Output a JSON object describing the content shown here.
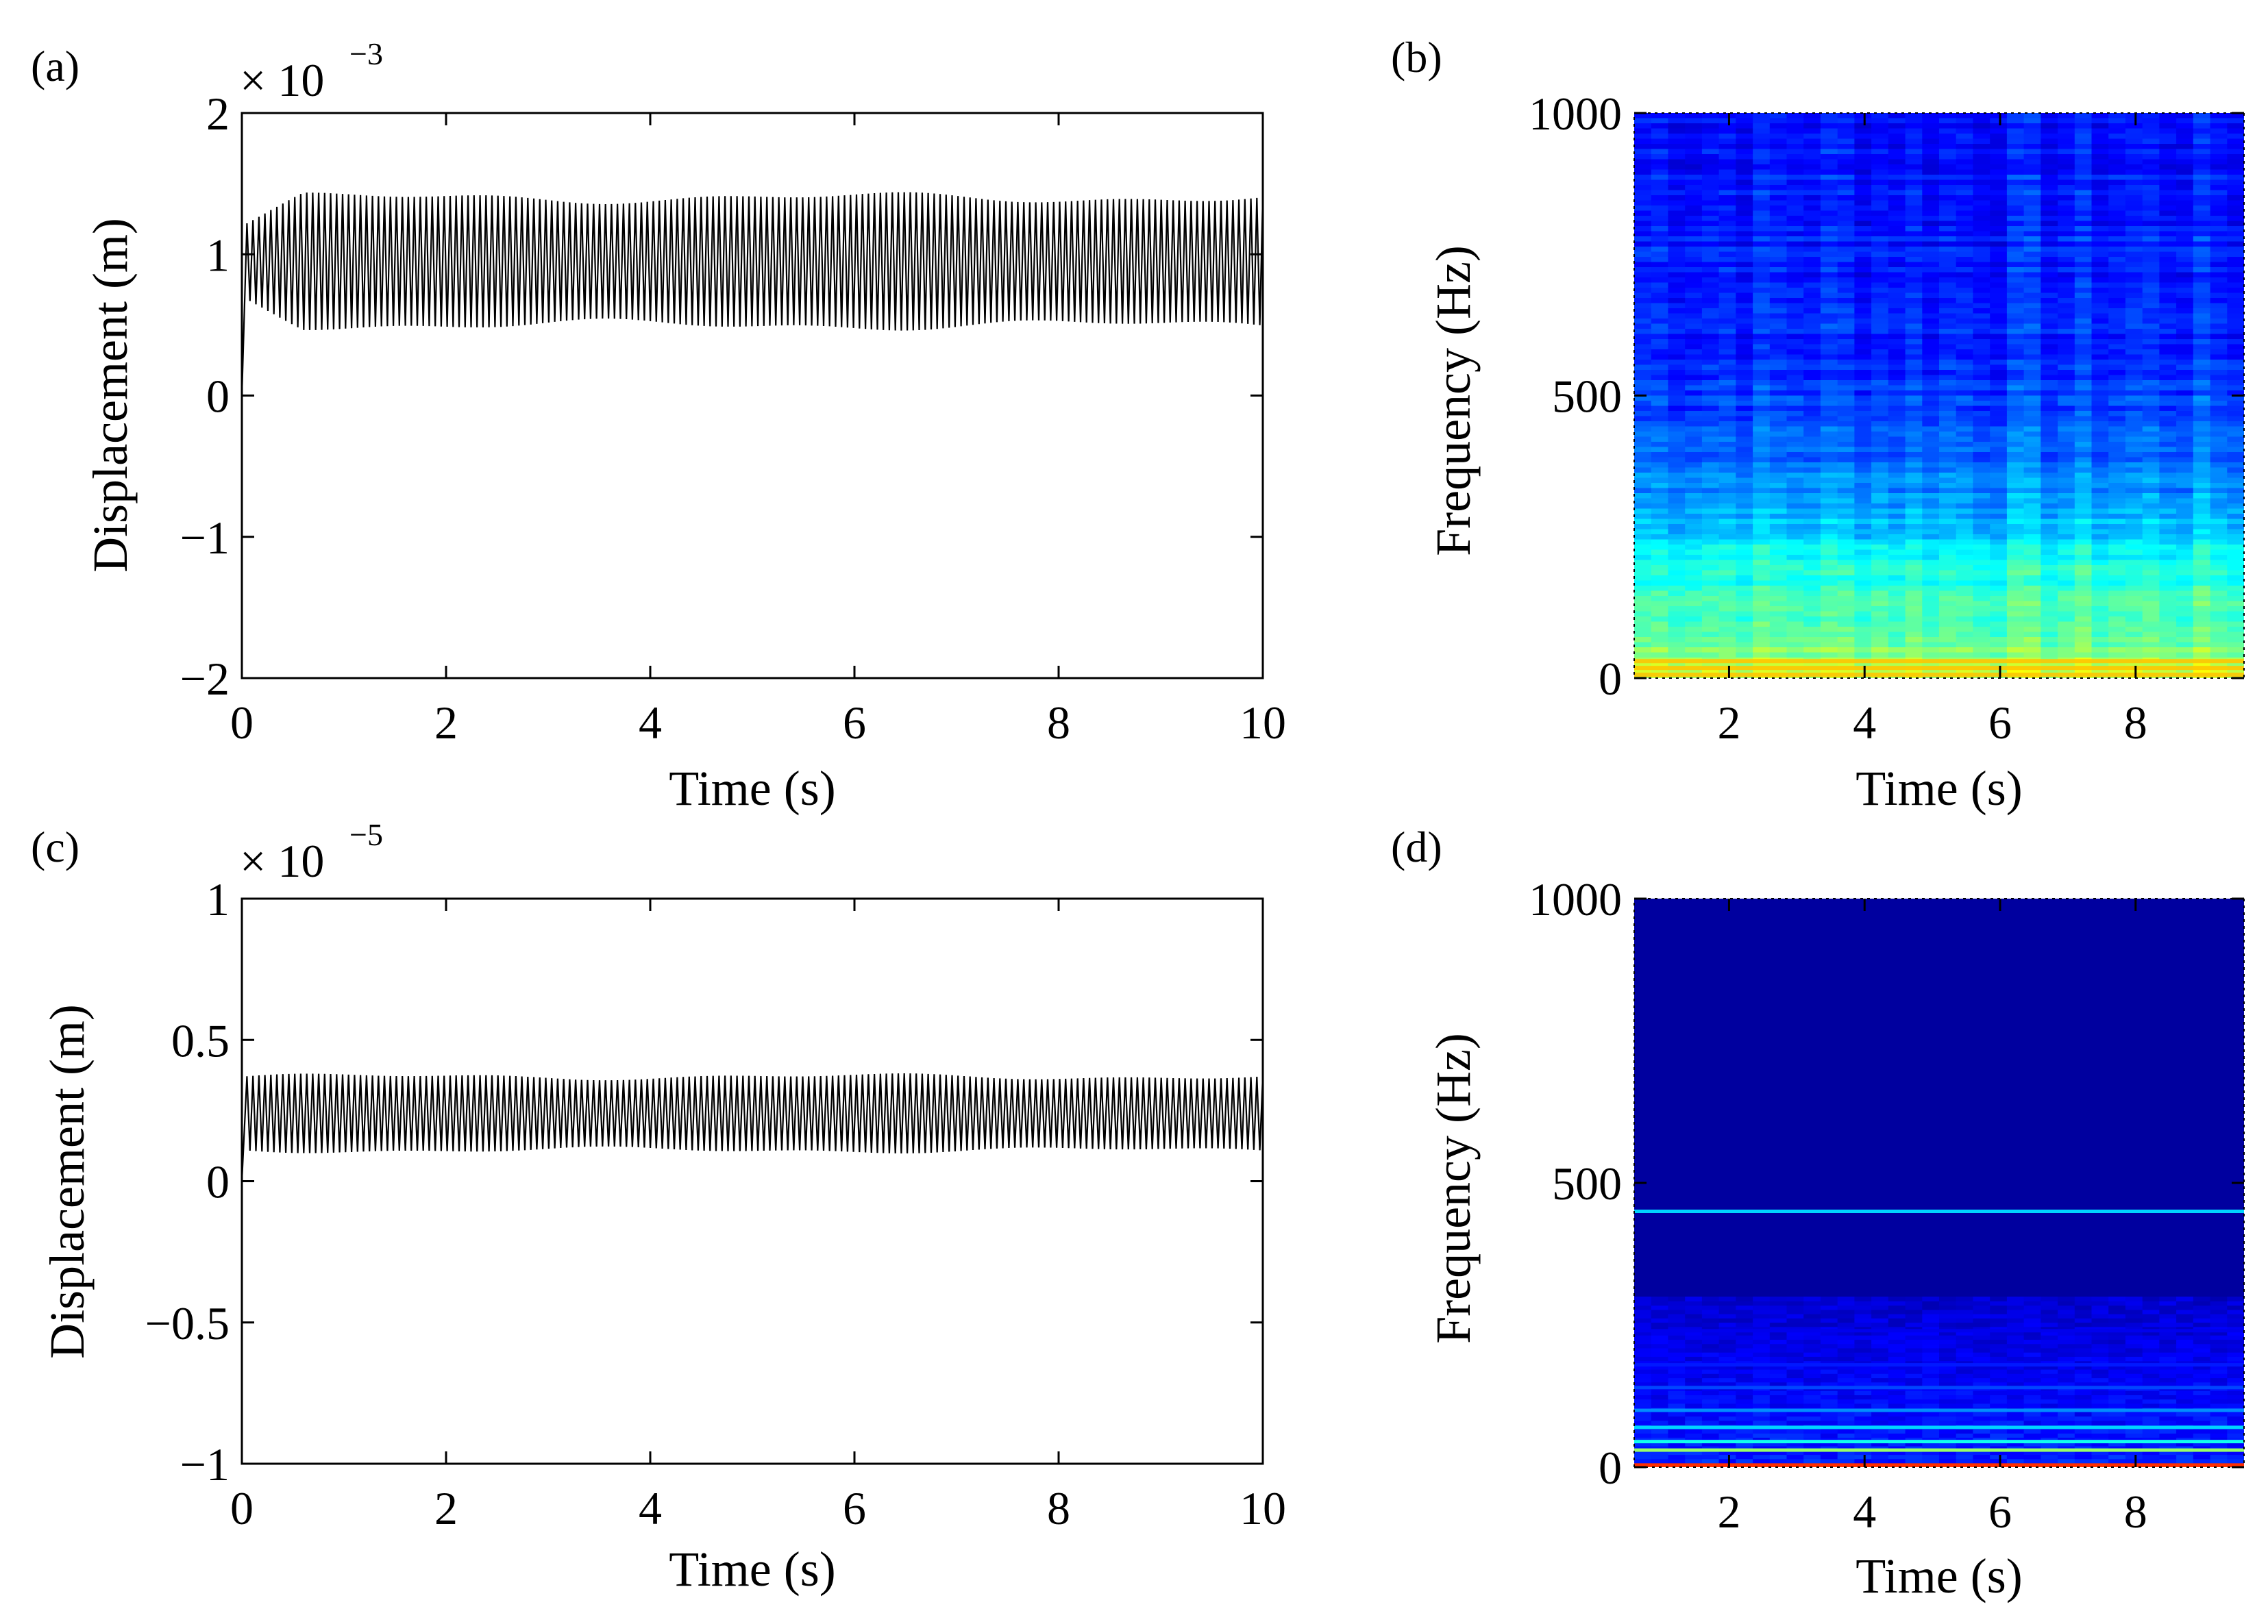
{
  "figure": {
    "background": "#ffffff",
    "axis_color": "#000000",
    "signal_color": "#000000"
  },
  "chart_data": [
    {
      "id": "a",
      "panel_label": "(a)",
      "type": "line",
      "title": "",
      "xlabel": "Time (s)",
      "ylabel": "Displacement (m)",
      "xlim": [
        0,
        10
      ],
      "ylim": [
        -2,
        2
      ],
      "x_ticks": [
        0,
        2,
        4,
        6,
        8,
        10
      ],
      "x_tick_labels": [
        "0",
        "2",
        "4",
        "6",
        "8",
        "10"
      ],
      "y_ticks": [
        2,
        1,
        0,
        -1,
        -2
      ],
      "y_tick_labels": [
        "2",
        "1",
        "0",
        "−1",
        "−2"
      ],
      "y_scale_prefix": "× 10",
      "y_scale_exponent": "−3",
      "series": [
        {
          "name": "displacement",
          "description_values": {
            "start_value": 0,
            "rise_time": 0.05,
            "transient_peak": 1.2,
            "transient_trough": 0.7,
            "transient_end": 0.6,
            "steady_mean": 0.95,
            "steady_amplitude": 0.45,
            "cycles_shown": 170
          }
        }
      ]
    },
    {
      "id": "b",
      "panel_label": "(b)",
      "type": "heatmap",
      "title": "",
      "xlabel": "Time (s)",
      "ylabel": "Frequency (Hz)",
      "xlim": [
        0.6,
        9.6
      ],
      "ylim": [
        0,
        1000
      ],
      "x_ticks": [
        2,
        4,
        6,
        8
      ],
      "x_tick_labels": [
        "2",
        "4",
        "6",
        "8"
      ],
      "y_ticks": [
        1000,
        500,
        0
      ],
      "y_tick_labels": [
        "1000",
        "500",
        "0"
      ],
      "colormap": [
        "#00008f",
        "#0000ff",
        "#0080ff",
        "#00ffff",
        "#80ff80",
        "#ffff00",
        "#ff8000",
        "#ff0000"
      ],
      "intensity_profile": [
        {
          "freq": 0,
          "level": 0.66
        },
        {
          "freq": 30,
          "level": 0.6
        },
        {
          "freq": 100,
          "level": 0.52
        },
        {
          "freq": 200,
          "level": 0.45
        },
        {
          "freq": 300,
          "level": 0.34
        },
        {
          "freq": 400,
          "level": 0.25
        },
        {
          "freq": 600,
          "level": 0.19
        },
        {
          "freq": 1000,
          "level": 0.16
        }
      ],
      "lines_hz": [
        6,
        18,
        30
      ]
    },
    {
      "id": "c",
      "panel_label": "(c)",
      "type": "line",
      "title": "",
      "xlabel": "Time (s)",
      "ylabel": "Displacement (m)",
      "xlim": [
        0,
        10
      ],
      "ylim": [
        -1,
        1
      ],
      "x_ticks": [
        0,
        2,
        4,
        6,
        8,
        10
      ],
      "x_tick_labels": [
        "0",
        "2",
        "4",
        "6",
        "8",
        "10"
      ],
      "y_ticks": [
        1,
        0.5,
        0,
        -0.5,
        -1
      ],
      "y_tick_labels": [
        "1",
        "0.5",
        "0",
        "−0.5",
        "−1"
      ],
      "y_scale_prefix": "× 10",
      "y_scale_exponent": "−5",
      "series": [
        {
          "name": "displacement",
          "description_values": {
            "start_value": 0,
            "rise_time": 0.05,
            "steady_mean": 0.24,
            "steady_amplitude": 0.13,
            "cycles_shown": 170
          }
        }
      ]
    },
    {
      "id": "d",
      "panel_label": "(d)",
      "type": "heatmap",
      "title": "",
      "xlabel": "Time (s)",
      "ylabel": "Frequency (Hz)",
      "xlim": [
        0.6,
        9.6
      ],
      "ylim": [
        0,
        1000
      ],
      "x_ticks": [
        2,
        4,
        6,
        8
      ],
      "x_tick_labels": [
        "2",
        "4",
        "6",
        "8"
      ],
      "y_ticks": [
        1000,
        500,
        0
      ],
      "y_tick_labels": [
        "1000",
        "500",
        "0"
      ],
      "colormap": [
        "#00008f",
        "#0000ff",
        "#0080ff",
        "#00ffff",
        "#80ff80",
        "#ffff00",
        "#ff8000",
        "#ff0000"
      ],
      "background_level": 0.02,
      "lines_hz": [
        {
          "freq": 2,
          "level": 0.95
        },
        {
          "freq": 30,
          "level": 0.6
        },
        {
          "freq": 45,
          "level": 0.45
        },
        {
          "freq": 70,
          "level": 0.38
        },
        {
          "freq": 100,
          "level": 0.3
        },
        {
          "freq": 140,
          "level": 0.22
        },
        {
          "freq": 180,
          "level": 0.17
        },
        {
          "freq": 240,
          "level": 0.12
        },
        {
          "freq": 450,
          "level": 0.38
        }
      ]
    }
  ]
}
